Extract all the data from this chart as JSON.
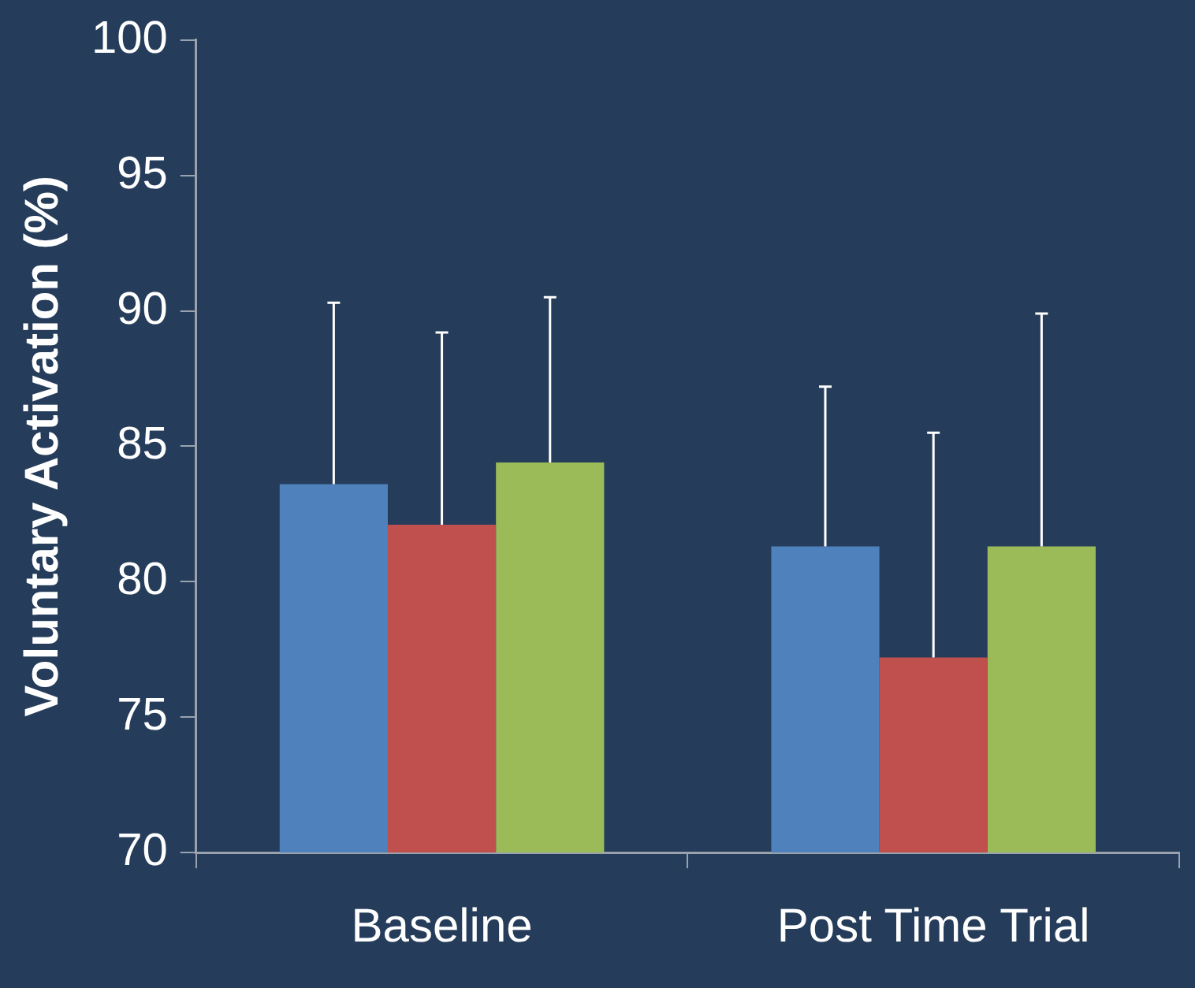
{
  "chart_data": {
    "type": "bar",
    "ylabel": "Voluntary Activation (%)",
    "categories": [
      "Baseline",
      "Post Time Trial"
    ],
    "series": [
      {
        "color": "#4f81bd",
        "values": [
          83.6,
          81.3
        ],
        "errors": [
          [
            83.6,
            90.3
          ],
          [
            81.3,
            87.2
          ]
        ]
      },
      {
        "color": "#c0504d",
        "values": [
          82.1,
          77.2
        ],
        "errors": [
          [
            82.1,
            89.2
          ],
          [
            77.2,
            85.5
          ]
        ]
      },
      {
        "color": "#9bbb59",
        "values": [
          84.4,
          81.3
        ],
        "errors": [
          [
            84.4,
            90.5
          ],
          [
            81.3,
            89.9
          ]
        ]
      }
    ],
    "ylim": [
      70,
      100
    ],
    "yticks": [
      70,
      75,
      80,
      85,
      90,
      95,
      100
    ]
  }
}
